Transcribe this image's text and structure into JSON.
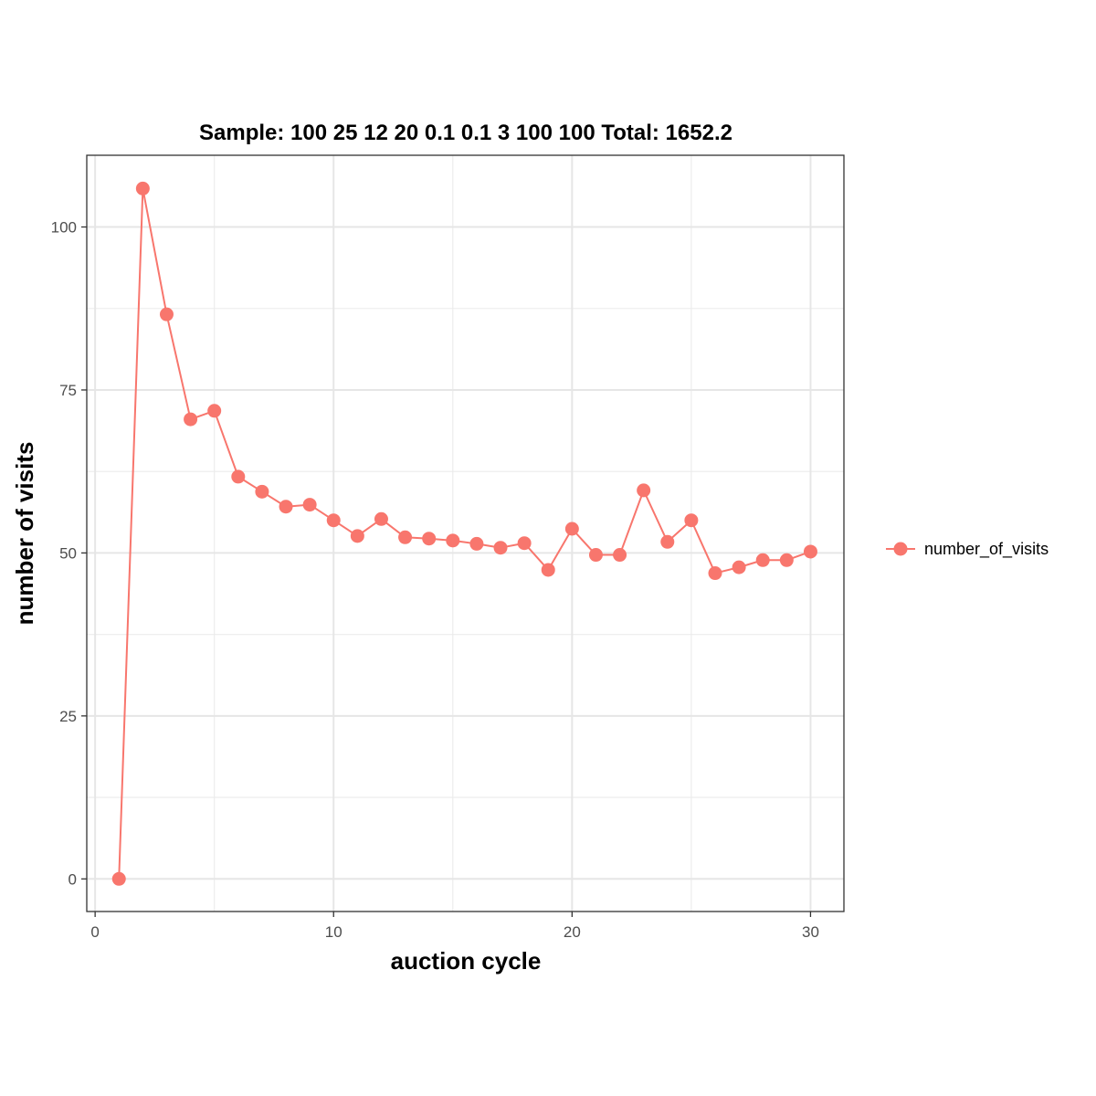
{
  "chart_data": {
    "type": "line",
    "title": "Sample: 100 25 12 20 0.1 0.1 3 100 100  Total: 1652.2",
    "xlabel": "auction cycle",
    "ylabel": "number of visits",
    "xlim": [
      -0.35,
      31.4
    ],
    "ylim": [
      -5.0,
      111.0
    ],
    "x_ticks": [
      "0",
      "10",
      "20",
      "30"
    ],
    "y_ticks": [
      "0",
      "25",
      "50",
      "75",
      "100"
    ],
    "x_tick_values": [
      0,
      10,
      20,
      30
    ],
    "y_tick_values": [
      0,
      25,
      50,
      75,
      100
    ],
    "x_minor_values": [
      5,
      15,
      25
    ],
    "y_minor_values": [
      12.5,
      37.5,
      62.5,
      87.5
    ],
    "grid": true,
    "legend_position": "right",
    "series": [
      {
        "name": "number_of_visits",
        "color": "#F8766D",
        "x": [
          1,
          2,
          3,
          4,
          5,
          6,
          7,
          8,
          9,
          10,
          11,
          12,
          13,
          14,
          15,
          16,
          17,
          18,
          19,
          20,
          21,
          22,
          23,
          24,
          25,
          26,
          27,
          28,
          29,
          30
        ],
        "y": [
          0,
          105.9,
          86.6,
          70.5,
          71.8,
          61.7,
          59.4,
          57.1,
          57.4,
          55.0,
          52.6,
          55.2,
          52.4,
          52.2,
          51.9,
          51.4,
          50.8,
          51.5,
          47.4,
          53.7,
          49.7,
          49.7,
          59.6,
          51.7,
          55.0,
          46.9,
          47.8,
          48.9,
          48.9,
          50.2
        ]
      }
    ]
  }
}
